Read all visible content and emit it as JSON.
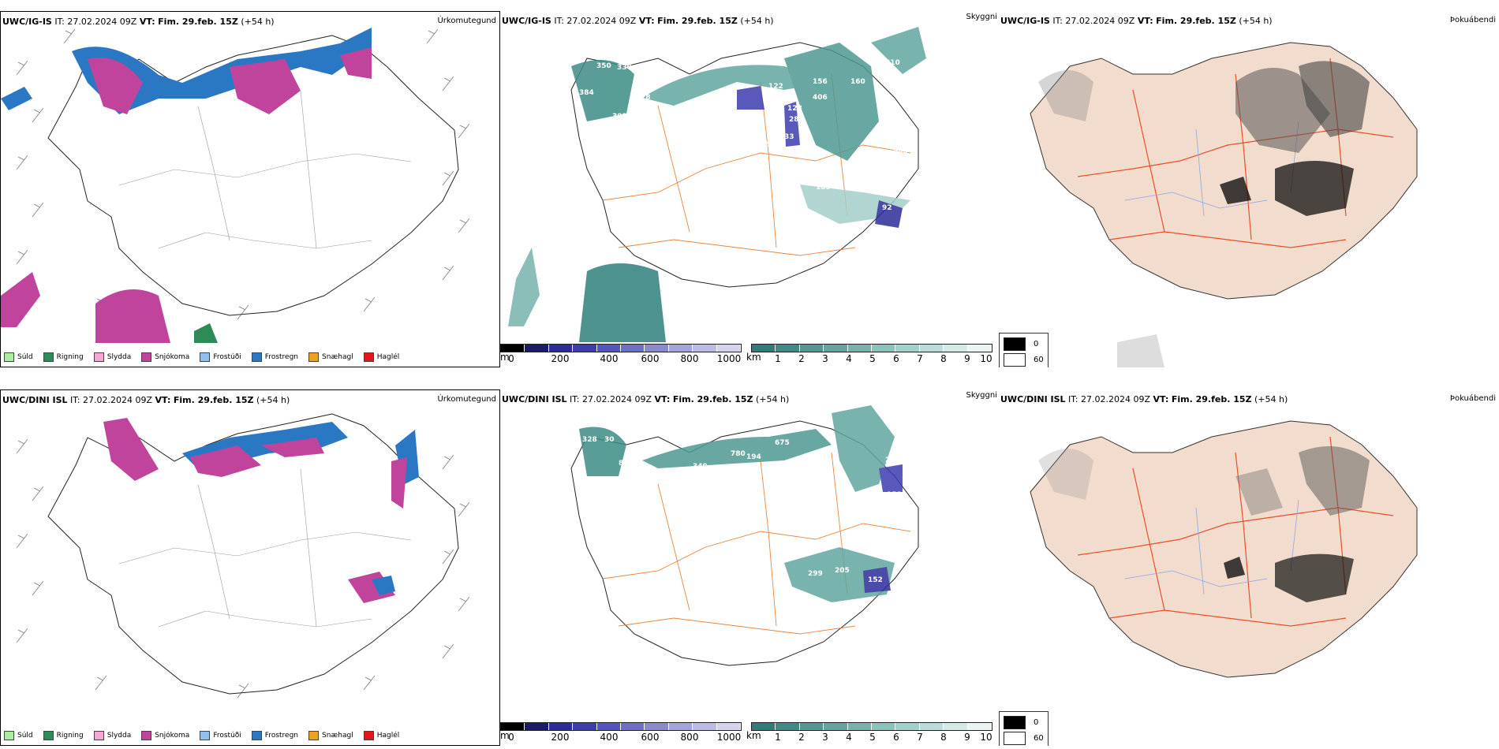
{
  "header": {
    "it_label": "IT:",
    "it_value": "27.02.2024 09Z",
    "vt_label": "VT:",
    "vt_value": "Fim. 29.feb. 15Z",
    "lead": "(+54 h)"
  },
  "rows": [
    {
      "model": "UWC/IG-IS"
    },
    {
      "model": "UWC/DINI ISL"
    }
  ],
  "panel_titles": {
    "precip_type": "Úrkomutegund",
    "visibility": "Skyggni",
    "fog": "Þokuábendi"
  },
  "precip_legend": [
    {
      "label": "Súld",
      "color": "#a8f0a0"
    },
    {
      "label": "Rigning",
      "color": "#2e8b57"
    },
    {
      "label": "Slydda",
      "color": "#f4a6d4"
    },
    {
      "label": "Snjókoma",
      "color": "#c0449c"
    },
    {
      "label": "Frostúði",
      "color": "#8ec0f0"
    },
    {
      "label": "Frostregn",
      "color": "#2a78c4"
    },
    {
      "label": "Snæhagl",
      "color": "#f0a020"
    },
    {
      "label": "Haglél",
      "color": "#e01818"
    }
  ],
  "visibility_legend": {
    "m_unit": "m",
    "m_ticks": [
      "0",
      "200",
      "400",
      "600",
      "800",
      "1000"
    ],
    "m_colors": [
      "#000000",
      "#1a1a6e",
      "#2c2c9a",
      "#3d3db0",
      "#5555c0",
      "#6f6fc8",
      "#8a8ad0",
      "#a4a4d8",
      "#bcbce2",
      "#d4d4ee"
    ],
    "km_unit": "km",
    "km_ticks": [
      "1",
      "2",
      "3",
      "4",
      "5",
      "6",
      "7",
      "8",
      "9",
      "10"
    ],
    "km_colors": [
      "#2e7f7a",
      "#3d8c86",
      "#4f9992",
      "#62a69f",
      "#77b3ad",
      "#8dc1bb",
      "#a4cfca",
      "#bbdcd8",
      "#d3eae7",
      "#ebf6f4"
    ]
  },
  "fog_legend": [
    {
      "label": "0",
      "color": "#000000"
    },
    {
      "label": "60",
      "color": "#ffffff"
    }
  ],
  "top_vis_labels": [
    "350",
    "330",
    "384",
    "28",
    "302",
    "610",
    "156",
    "160",
    "122",
    "406",
    "128",
    "288",
    "95",
    "33",
    "189",
    "92",
    "588"
  ],
  "bottom_vis_labels": [
    "328",
    "30",
    "88",
    "675",
    "780",
    "194",
    "349",
    "37",
    "27",
    "34",
    "158",
    "202",
    "299",
    "205",
    "152"
  ]
}
